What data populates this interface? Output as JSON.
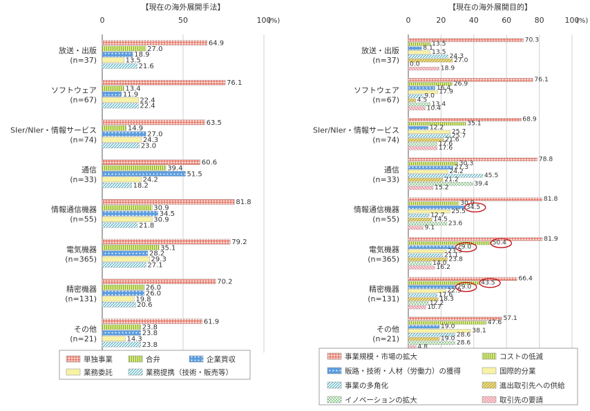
{
  "chart_data": [
    {
      "type": "bar",
      "title": "【現在の海外展開手法】",
      "unit": "(%)",
      "xlim": [
        0,
        100
      ],
      "ticks": [
        "0",
        "50",
        "100"
      ],
      "orientation": "horizontal",
      "categories": [
        {
          "name": "放送・出版",
          "n": "(n=37)"
        },
        {
          "name": "ソフトウェア",
          "n": "(n=67)"
        },
        {
          "name": "SIer/NIer・情報サービス",
          "n": "(n=74)"
        },
        {
          "name": "通信",
          "n": "(n=33)"
        },
        {
          "name": "情報通信機器",
          "n": "(n=55)"
        },
        {
          "name": "電気機器",
          "n": "(n=365)"
        },
        {
          "name": "精密機器",
          "n": "(n=131)"
        },
        {
          "name": "その他",
          "n": "(n=21)"
        }
      ],
      "series": [
        {
          "name": "単独事業",
          "color": "#e0523e",
          "pattern": "redgrid",
          "values": [
            64.9,
            76.1,
            63.5,
            60.6,
            81.8,
            79.2,
            70.2,
            61.9
          ]
        },
        {
          "name": "合弁",
          "color": "#a9c93b",
          "pattern": "greenline",
          "values": [
            27.0,
            13.4,
            14.9,
            39.4,
            30.9,
            35.1,
            26.0,
            23.8
          ]
        },
        {
          "name": "企業買収",
          "color": "#4a90d9",
          "pattern": "bluedot",
          "values": [
            18.9,
            11.9,
            27.0,
            51.5,
            34.5,
            28.2,
            26.0,
            23.8
          ]
        },
        {
          "name": "業務委託",
          "color": "#f4ee9a",
          "pattern": "yellow",
          "values": [
            13.5,
            22.4,
            24.3,
            24.2,
            30.9,
            29.3,
            19.8,
            14.3
          ]
        },
        {
          "name": "業務提携（技術・販売等）",
          "color": "#4fb7c9",
          "pattern": "tealdiag",
          "values": [
            21.6,
            22.4,
            23.0,
            18.2,
            21.8,
            27.1,
            20.6,
            23.8
          ]
        }
      ],
      "value_labels": [
        [
          "64.9",
          "27.0",
          "18.9",
          "13.5",
          "21.6"
        ],
        [
          "76.1",
          "13.4",
          "11.9",
          "22.4",
          "22.4"
        ],
        [
          "63.5",
          "14.9",
          "27.0",
          "24.3",
          "23.0"
        ],
        [
          "60.6",
          "39.4",
          "51.5",
          "24.2",
          "18.2"
        ],
        [
          "81.8",
          "30.9",
          "34.5",
          "30.9",
          "21.8"
        ],
        [
          "79.2",
          "35.1",
          "28.2",
          "29.3",
          "27.1"
        ],
        [
          "70.2",
          "26.0",
          "26.0",
          "19.8",
          "20.6"
        ],
        [
          "61.9",
          "23.8",
          "23.8",
          "14.3",
          "23.8"
        ]
      ]
    },
    {
      "type": "bar",
      "title": "【現在の海外展開目的】",
      "unit": "(%)",
      "xlim": [
        0,
        100
      ],
      "ticks": [
        "0",
        "20",
        "40",
        "60",
        "80",
        "100"
      ],
      "orientation": "horizontal",
      "categories": [
        {
          "name": "放送・出版",
          "n": "(n=37)"
        },
        {
          "name": "ソフトウェア",
          "n": "(n=67)"
        },
        {
          "name": "SIer/NIer・情報サービス",
          "n": "(n=74)"
        },
        {
          "name": "通信",
          "n": "(n=33)"
        },
        {
          "name": "情報通信機器",
          "n": "(n=55)"
        },
        {
          "name": "電気機器",
          "n": "(n=365)"
        },
        {
          "name": "精密機器",
          "n": "(n=131)"
        },
        {
          "name": "その他",
          "n": "(n=21)"
        }
      ],
      "series": [
        {
          "name": "事業規模・市場の拡大",
          "color": "#e0523e",
          "pattern": "redgrid",
          "values": [
            70.3,
            76.1,
            68.9,
            78.8,
            81.8,
            81.9,
            66.4,
            57.1
          ]
        },
        {
          "name": "コストの低減",
          "color": "#a9c93b",
          "pattern": "greenline",
          "values": [
            13.5,
            26.9,
            35.1,
            30.3,
            30.9,
            50.4,
            43.5,
            47.6
          ]
        },
        {
          "name": "販路・技術・人材（労働力）の獲得",
          "color": "#4a90d9",
          "pattern": "bluedot",
          "values": [
            8.1,
            16.4,
            12.2,
            27.3,
            34.5,
            29.0,
            29.0,
            19.0
          ]
        },
        {
          "name": "国際的分業",
          "color": "#f4ee9a",
          "pattern": "yellow",
          "values": [
            13.5,
            17.9,
            25.7,
            24.2,
            25.5,
            23.3,
            22.9,
            38.1
          ]
        },
        {
          "name": "事業の多角化",
          "color": "#4fb7c9",
          "pattern": "tealdiag",
          "values": [
            24.3,
            9.0,
            25.7,
            45.5,
            12.7,
            21.1,
            17.6,
            28.6
          ]
        },
        {
          "name": "進出取引先への供給",
          "color": "#c9b34a",
          "pattern": "olivediag",
          "values": [
            27.0,
            4.5,
            21.6,
            21.2,
            14.5,
            23.8,
            18.3,
            19.0
          ]
        },
        {
          "name": "イノベーションの拡大",
          "color": "#8bc98b",
          "pattern": "greencheck",
          "values": [
            0.0,
            13.4,
            17.6,
            39.4,
            23.6,
            14.0,
            12.2,
            28.6
          ]
        },
        {
          "name": "取引先の要請",
          "color": "#f2a0a8",
          "pattern": "pinkdiag",
          "values": [
            18.9,
            10.4,
            17.6,
            15.2,
            9.1,
            16.2,
            10.7,
            4.8
          ]
        }
      ],
      "value_labels": [
        [
          "70.3",
          "13.5",
          "8.1",
          "13.5",
          "24.3",
          "27.0",
          "0.0",
          "18.9"
        ],
        [
          "76.1",
          "26.9",
          "16.4",
          "17.9",
          "9.0",
          "4.5",
          "13.4",
          "10.4"
        ],
        [
          "68.9",
          "35.1",
          "12.2",
          "25.7",
          "25.7",
          "21.6",
          "17.6",
          "17.6"
        ],
        [
          "78.8",
          "30.3",
          "27.3",
          "24.2",
          "45.5",
          "21.2",
          "39.4",
          "15.2"
        ],
        [
          "81.8",
          "30.9",
          "34.5",
          "25.5",
          "12.7",
          "14.5",
          "23.6",
          "9.1"
        ],
        [
          "81.9",
          "50.4",
          "29.0",
          "23.3",
          "21.1",
          "23.8",
          "14.0",
          "16.2"
        ],
        [
          "66.4",
          "43.5",
          "29.0",
          "22.9",
          "17.6",
          "18.3",
          "12.2",
          "10.7"
        ],
        [
          "57.1",
          "47.6",
          "19.0",
          "38.1",
          "28.6",
          "19.0",
          "28.6",
          "4.8"
        ]
      ],
      "highlighted": [
        {
          "category": 4,
          "series": 2
        },
        {
          "category": 5,
          "series": 1
        },
        {
          "category": 5,
          "series": 2
        },
        {
          "category": 6,
          "series": 1
        },
        {
          "category": 6,
          "series": 2
        }
      ]
    }
  ]
}
